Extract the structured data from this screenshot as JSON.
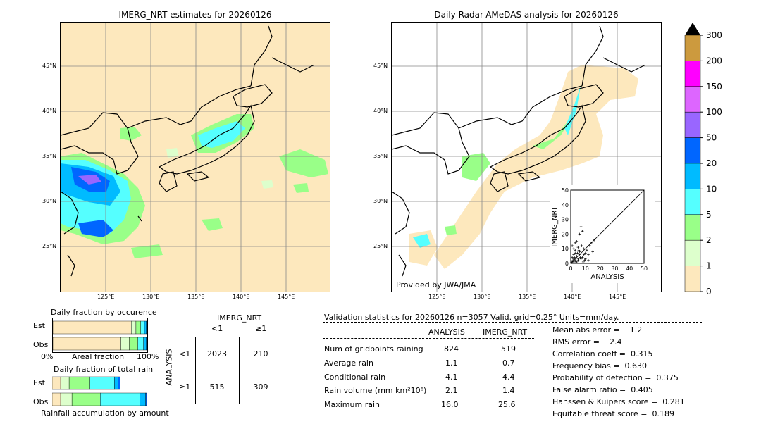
{
  "left_map": {
    "title": "IMERG_NRT estimates for 20260126",
    "lat_labels": [
      "45°N",
      "40°N",
      "35°N",
      "30°N",
      "25°N"
    ],
    "lon_labels": [
      "125°E",
      "130°E",
      "135°E",
      "140°E",
      "145°E"
    ]
  },
  "right_map": {
    "title": "Daily Radar-AMeDAS analysis for 20260126",
    "lat_labels": [
      "45°N",
      "40°N",
      "35°N",
      "30°N",
      "25°N"
    ],
    "lon_labels": [
      "125°E",
      "130°E",
      "135°E",
      "140°E",
      "145°E"
    ],
    "credit": "Provided by JWA/JMA"
  },
  "colorbar": {
    "ticks": [
      "300",
      "200",
      "150",
      "100",
      "50",
      "20",
      "10",
      "5",
      "2",
      "1",
      "0"
    ],
    "colors": [
      "#cc9a3e",
      "#ff00ff",
      "#dd66ff",
      "#9966ff",
      "#0066ff",
      "#00bbff",
      "#55ffff",
      "#99ff88",
      "#ddffcc",
      "#fde8bd"
    ]
  },
  "chart_data": [
    {
      "type": "scatter",
      "xlabel": "ANALYSIS",
      "ylabel": "IMERG_NRT",
      "xlim": [
        0,
        50
      ],
      "ylim": [
        0,
        50
      ],
      "x_ticks": [
        "0",
        "10",
        "20",
        "30",
        "40",
        "50"
      ],
      "y_ticks": [
        "0",
        "10",
        "20",
        "30",
        "40",
        "50"
      ],
      "points": [
        [
          1,
          1
        ],
        [
          2,
          3
        ],
        [
          3,
          2
        ],
        [
          4,
          5
        ],
        [
          5,
          2
        ],
        [
          6,
          8
        ],
        [
          2,
          10
        ],
        [
          3,
          7
        ],
        [
          8,
          4
        ],
        [
          9,
          10
        ],
        [
          10,
          3
        ],
        [
          12,
          6
        ],
        [
          13,
          12
        ],
        [
          6,
          20
        ],
        [
          4,
          15
        ],
        [
          15,
          8
        ],
        [
          7,
          25
        ],
        [
          8,
          22
        ],
        [
          5,
          3
        ],
        [
          1,
          4
        ],
        [
          2,
          6
        ],
        [
          3,
          9
        ],
        [
          4,
          1
        ],
        [
          6,
          6
        ],
        [
          7,
          3
        ],
        [
          11,
          9
        ],
        [
          14,
          14
        ],
        [
          16,
          16
        ],
        [
          12,
          2
        ],
        [
          10,
          7
        ],
        [
          1,
          12
        ],
        [
          3,
          14
        ],
        [
          5,
          11
        ],
        [
          9,
          6
        ],
        [
          2,
          1
        ],
        [
          0.5,
          0.5
        ],
        [
          1.5,
          2
        ],
        [
          2.5,
          4
        ],
        [
          3.5,
          1
        ],
        [
          4.5,
          7
        ],
        [
          6.5,
          4
        ],
        [
          8.5,
          1
        ],
        [
          5.5,
          9
        ],
        [
          7.5,
          12
        ],
        [
          9.5,
          2
        ]
      ]
    },
    {
      "type": "bar",
      "title": "Daily fraction by occurence",
      "categories": [
        "Est",
        "Obs"
      ],
      "xlabel_left": "0%",
      "xlabel_mid": "Areal fraction",
      "xlabel_right": "100%",
      "series": [
        {
          "color": "#fde8bd",
          "values": [
            0.83,
            0.72
          ]
        },
        {
          "color": "#ddffcc",
          "values": [
            0.05,
            0.09
          ]
        },
        {
          "color": "#99ff88",
          "values": [
            0.05,
            0.09
          ]
        },
        {
          "color": "#55ffff",
          "values": [
            0.04,
            0.06
          ]
        },
        {
          "color": "#00bbff",
          "values": [
            0.02,
            0.03
          ]
        },
        {
          "color": "#0066ff",
          "values": [
            0.01,
            0.01
          ]
        }
      ]
    },
    {
      "type": "bar",
      "title": "Daily fraction of total rain",
      "categories": [
        "Est",
        "Obs"
      ],
      "xlabel": "Rainfall accumulation by amount",
      "series": [
        {
          "color": "#fde8bd",
          "values": [
            0.09,
            0.09
          ]
        },
        {
          "color": "#ddffcc",
          "values": [
            0.09,
            0.12
          ]
        },
        {
          "color": "#99ff88",
          "values": [
            0.22,
            0.3
          ]
        },
        {
          "color": "#55ffff",
          "values": [
            0.26,
            0.42
          ]
        },
        {
          "color": "#00bbff",
          "values": [
            0.04,
            0.06
          ]
        },
        {
          "color": "#0066ff",
          "values": [
            0.02,
            0.01
          ]
        }
      ]
    },
    {
      "type": "table",
      "title": "IMERG_NRT",
      "col_headers": [
        "<1",
        "≥1"
      ],
      "row_label": "ANALYSIS",
      "row_headers": [
        "<1",
        "≥1"
      ],
      "cells": [
        [
          "2023",
          "210"
        ],
        [
          "515",
          "309"
        ]
      ]
    }
  ],
  "validation": {
    "header": "Validation statistics for 20260126  n=3057 Valid. grid=0.25° Units=mm/day.",
    "col_analysis": "ANALYSIS",
    "col_imerg": "IMERG_NRT",
    "rows": [
      {
        "label": "Num of gridpoints raining",
        "analysis": "824",
        "imerg": "519"
      },
      {
        "label": "Average rain",
        "analysis": "1.1",
        "imerg": "0.7"
      },
      {
        "label": "Conditional rain",
        "analysis": "4.1",
        "imerg": "4.4"
      },
      {
        "label": "Rain volume (mm km²10⁶)",
        "analysis": "2.1",
        "imerg": "1.4"
      },
      {
        "label": "Maximum rain",
        "analysis": "16.0",
        "imerg": "25.6"
      }
    ],
    "scores": [
      "Mean abs error =    1.2",
      "RMS error =    2.4",
      "Correlation coeff =  0.315",
      "Frequency bias =  0.630",
      "Probability of detection =  0.375",
      "False alarm ratio =  0.405",
      "Hanssen & Kuipers score =  0.281",
      "Equitable threat score =  0.189"
    ]
  }
}
